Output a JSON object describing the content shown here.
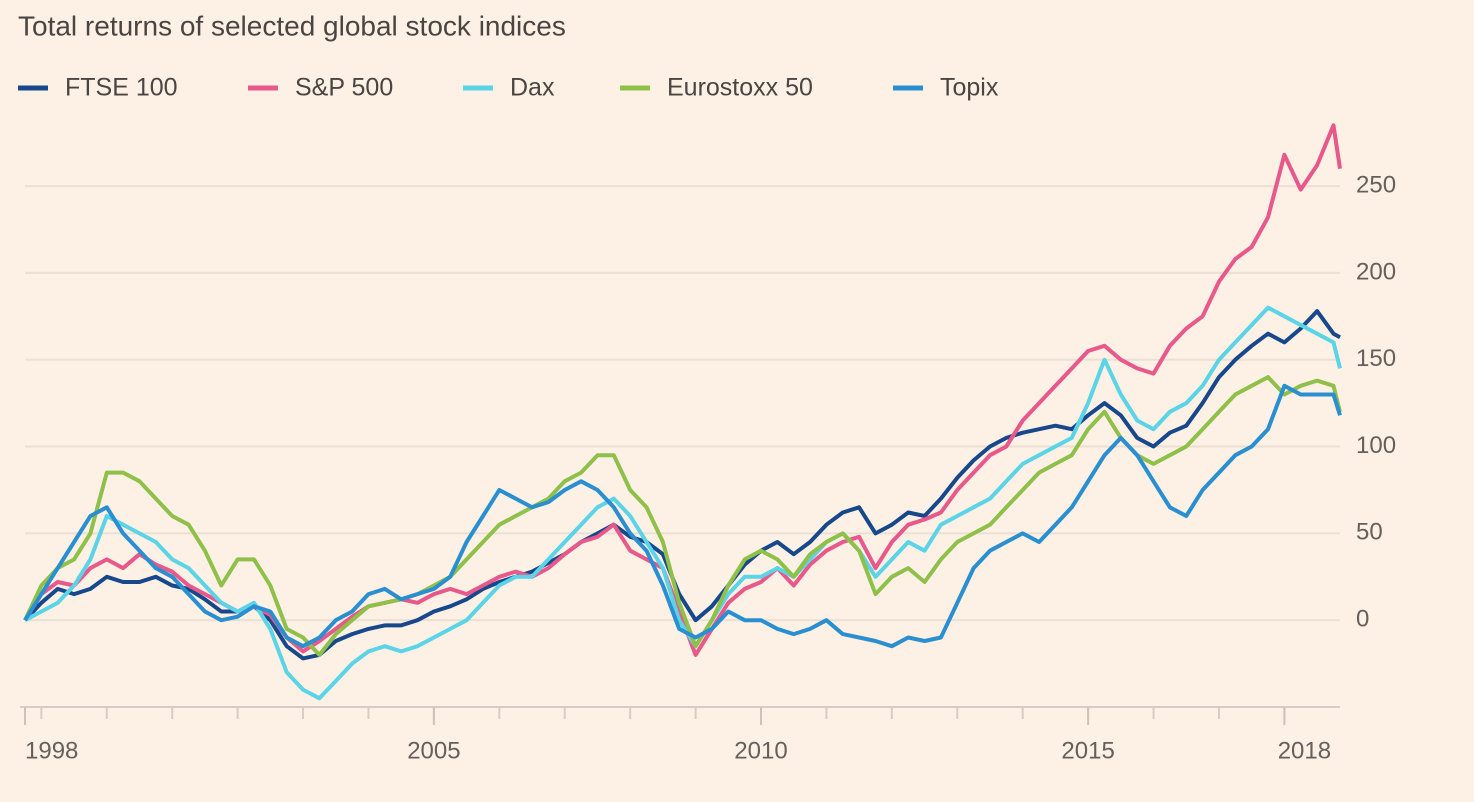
{
  "chart_data": {
    "type": "line",
    "title": "Total returns of selected global stock indices",
    "x": [
      1998.75,
      1999,
      1999.25,
      1999.5,
      1999.75,
      2000,
      2000.25,
      2000.5,
      2000.75,
      2001,
      2001.25,
      2001.5,
      2001.75,
      2002,
      2002.25,
      2002.5,
      2002.75,
      2003,
      2003.25,
      2003.5,
      2003.75,
      2004,
      2004.25,
      2004.5,
      2004.75,
      2005,
      2005.25,
      2005.5,
      2005.75,
      2006,
      2006.25,
      2006.5,
      2006.75,
      2007,
      2007.25,
      2007.5,
      2007.75,
      2008,
      2008.25,
      2008.5,
      2008.75,
      2009,
      2009.25,
      2009.5,
      2009.75,
      2010,
      2010.25,
      2010.5,
      2010.75,
      2011,
      2011.25,
      2011.5,
      2011.75,
      2012,
      2012.25,
      2012.5,
      2012.75,
      2013,
      2013.25,
      2013.5,
      2013.75,
      2014,
      2014.25,
      2014.5,
      2014.75,
      2015,
      2015.25,
      2015.5,
      2015.75,
      2016,
      2016.25,
      2016.5,
      2016.75,
      2017,
      2017.25,
      2017.5,
      2017.75,
      2018,
      2018.25,
      2018.5,
      2018.75,
      2018.85
    ],
    "series": [
      {
        "name": "FTSE 100",
        "color": "#17488c",
        "values": [
          0,
          10,
          18,
          15,
          18,
          25,
          22,
          22,
          25,
          20,
          18,
          12,
          5,
          5,
          8,
          0,
          -15,
          -22,
          -20,
          -12,
          -8,
          -5,
          -3,
          -3,
          0,
          5,
          8,
          12,
          18,
          22,
          25,
          28,
          33,
          38,
          45,
          50,
          55,
          48,
          45,
          38,
          15,
          0,
          8,
          20,
          32,
          40,
          45,
          38,
          45,
          55,
          62,
          65,
          50,
          55,
          62,
          60,
          70,
          82,
          92,
          100,
          105,
          108,
          110,
          112,
          110,
          118,
          125,
          118,
          105,
          100,
          108,
          112,
          125,
          140,
          150,
          158,
          165,
          160,
          168,
          178,
          165,
          163
        ]
      },
      {
        "name": "S&P 500",
        "color": "#e8588a",
        "values": [
          0,
          15,
          22,
          20,
          30,
          35,
          30,
          38,
          32,
          28,
          20,
          15,
          10,
          5,
          8,
          3,
          -10,
          -18,
          -12,
          -5,
          2,
          8,
          10,
          12,
          10,
          15,
          18,
          15,
          20,
          25,
          28,
          25,
          30,
          38,
          45,
          48,
          55,
          40,
          35,
          30,
          5,
          -20,
          -5,
          10,
          18,
          22,
          30,
          20,
          32,
          40,
          45,
          48,
          30,
          45,
          55,
          58,
          62,
          75,
          85,
          95,
          100,
          115,
          125,
          135,
          145,
          155,
          158,
          150,
          145,
          142,
          158,
          168,
          175,
          195,
          208,
          215,
          232,
          268,
          248,
          262,
          285,
          260
        ]
      },
      {
        "name": "Dax",
        "color": "#5ad4e6",
        "values": [
          0,
          5,
          10,
          20,
          35,
          60,
          55,
          50,
          45,
          35,
          30,
          20,
          10,
          5,
          10,
          -5,
          -30,
          -40,
          -45,
          -35,
          -25,
          -18,
          -15,
          -18,
          -15,
          -10,
          -5,
          0,
          10,
          20,
          25,
          25,
          35,
          45,
          55,
          65,
          70,
          60,
          45,
          30,
          0,
          -15,
          0,
          15,
          25,
          25,
          30,
          25,
          35,
          45,
          50,
          40,
          25,
          35,
          45,
          40,
          55,
          60,
          65,
          70,
          80,
          90,
          95,
          100,
          105,
          125,
          150,
          130,
          115,
          110,
          120,
          125,
          135,
          150,
          160,
          170,
          180,
          175,
          170,
          165,
          160,
          145
        ]
      },
      {
        "name": "Eurostoxx 50",
        "color": "#8fc04a",
        "values": [
          0,
          20,
          30,
          35,
          50,
          85,
          85,
          80,
          70,
          60,
          55,
          40,
          20,
          35,
          35,
          20,
          -5,
          -10,
          -20,
          -8,
          0,
          8,
          10,
          12,
          15,
          20,
          25,
          35,
          45,
          55,
          60,
          65,
          70,
          80,
          85,
          95,
          95,
          75,
          65,
          45,
          10,
          -15,
          0,
          20,
          35,
          40,
          35,
          25,
          38,
          45,
          50,
          40,
          15,
          25,
          30,
          22,
          35,
          45,
          50,
          55,
          65,
          75,
          85,
          90,
          95,
          110,
          120,
          105,
          95,
          90,
          95,
          100,
          110,
          120,
          130,
          135,
          140,
          130,
          135,
          138,
          135,
          120
        ]
      },
      {
        "name": "Topix",
        "color": "#2a8fd0",
        "values": [
          0,
          15,
          30,
          45,
          60,
          65,
          50,
          40,
          30,
          25,
          15,
          5,
          0,
          2,
          8,
          5,
          -10,
          -15,
          -10,
          0,
          5,
          15,
          18,
          12,
          15,
          18,
          25,
          45,
          60,
          75,
          70,
          65,
          68,
          75,
          80,
          75,
          65,
          50,
          40,
          20,
          -5,
          -10,
          -5,
          5,
          0,
          0,
          -5,
          -8,
          -5,
          0,
          -8,
          -10,
          -12,
          -15,
          -10,
          -12,
          -10,
          10,
          30,
          40,
          45,
          50,
          45,
          55,
          65,
          80,
          95,
          105,
          95,
          80,
          65,
          60,
          75,
          85,
          95,
          100,
          110,
          135,
          130,
          130,
          130,
          118
        ]
      }
    ],
    "xlim": [
      1998.75,
      2018.85
    ],
    "xticks": [
      {
        "value": 1998.75,
        "label": "1998"
      },
      2005,
      2010,
      2015,
      2018
    ],
    "xminorticks": [
      1999,
      2000,
      2001,
      2002,
      2003,
      2004,
      2005,
      2006,
      2007,
      2008,
      2009,
      2010,
      2011,
      2012,
      2013,
      2014,
      2015,
      2016,
      2017,
      2018
    ],
    "ylim": [
      -50,
      280
    ],
    "yticks": [
      0,
      50,
      100,
      150,
      200,
      250
    ],
    "grid": true
  }
}
